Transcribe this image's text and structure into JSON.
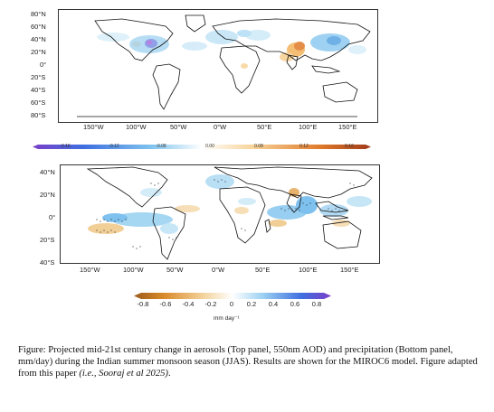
{
  "top_panel": {
    "lat_labels": [
      "80°N",
      "60°N",
      "40°N",
      "20°N",
      "0°",
      "20°S",
      "40°S",
      "60°S",
      "80°S"
    ],
    "lon_labels": [
      "150°W",
      "100°W",
      "50°W",
      "0°W",
      "50°E",
      "100°E",
      "150°E"
    ],
    "colorbar_ticks": [
      "-0.16",
      "-0.12",
      "-0.08",
      "0.00",
      "0.08",
      "0.12",
      "0.16"
    ]
  },
  "bottom_panel": {
    "lat_labels": [
      "40°N",
      "20°N",
      "0°",
      "20°S",
      "40°S"
    ],
    "lon_labels": [
      "150°W",
      "100°W",
      "50°W",
      "0°W",
      "50°E",
      "100°E",
      "150°E"
    ],
    "colorbar_ticks": [
      "-0.8",
      "-0.6",
      "-0.4",
      "-0.2",
      "0",
      "0.2",
      "0.4",
      "0.6",
      "0.8"
    ],
    "colorbar_unit": "mm day⁻¹"
  },
  "caption": {
    "text": "Figure: Projected mid-21st century change in aerosols (Top panel, 550nm AOD) and precipitation (Bottom panel, mm/day) during the Indian summer monsoon season (JJAS). Results are shown for the MIROC6 model. Figure adapted from this paper ",
    "citation": "(i.e., Sooraj et al 2025)",
    "end": "."
  },
  "colors": {
    "positive_aod": "#e8902a",
    "negative_aod": "#3aa0e8",
    "wet": "#3aa0e8",
    "dry": "#d98a2a"
  }
}
